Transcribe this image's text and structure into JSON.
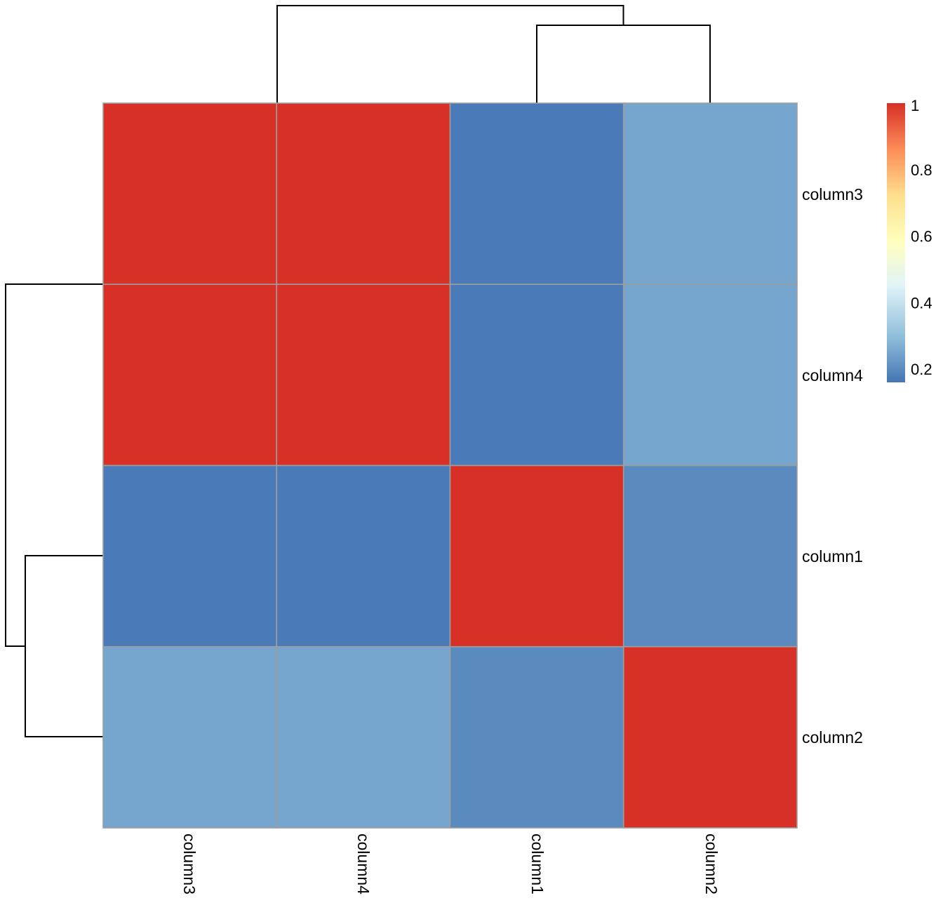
{
  "chart_data": {
    "type": "heatmap",
    "title": "",
    "row_labels": [
      "column3",
      "column4",
      "column1",
      "column2"
    ],
    "col_labels": [
      "column3",
      "column4",
      "column1",
      "column2"
    ],
    "values": [
      [
        1.0,
        1.0,
        0.17,
        0.25
      ],
      [
        1.0,
        1.0,
        0.17,
        0.25
      ],
      [
        0.17,
        0.17,
        1.0,
        0.2
      ],
      [
        0.25,
        0.25,
        0.2,
        1.0
      ]
    ],
    "color_scale": {
      "min": 0.16,
      "max": 1.0,
      "stops": [
        {
          "value": 0.16,
          "color": "#4575b4"
        },
        {
          "value": 0.3,
          "color": "#91bfdb"
        },
        {
          "value": 0.45,
          "color": "#e0f3f8"
        },
        {
          "value": 0.58,
          "color": "#ffffbf"
        },
        {
          "value": 0.72,
          "color": "#fee090"
        },
        {
          "value": 0.86,
          "color": "#fc8d59"
        },
        {
          "value": 1.0,
          "color": "#d73027"
        }
      ]
    },
    "legend": {
      "position": "right",
      "ticks": [
        "1",
        "0.8",
        "0.6",
        "0.4",
        "0.2"
      ]
    },
    "dendrogram": {
      "columns": "top",
      "rows": "left"
    }
  }
}
